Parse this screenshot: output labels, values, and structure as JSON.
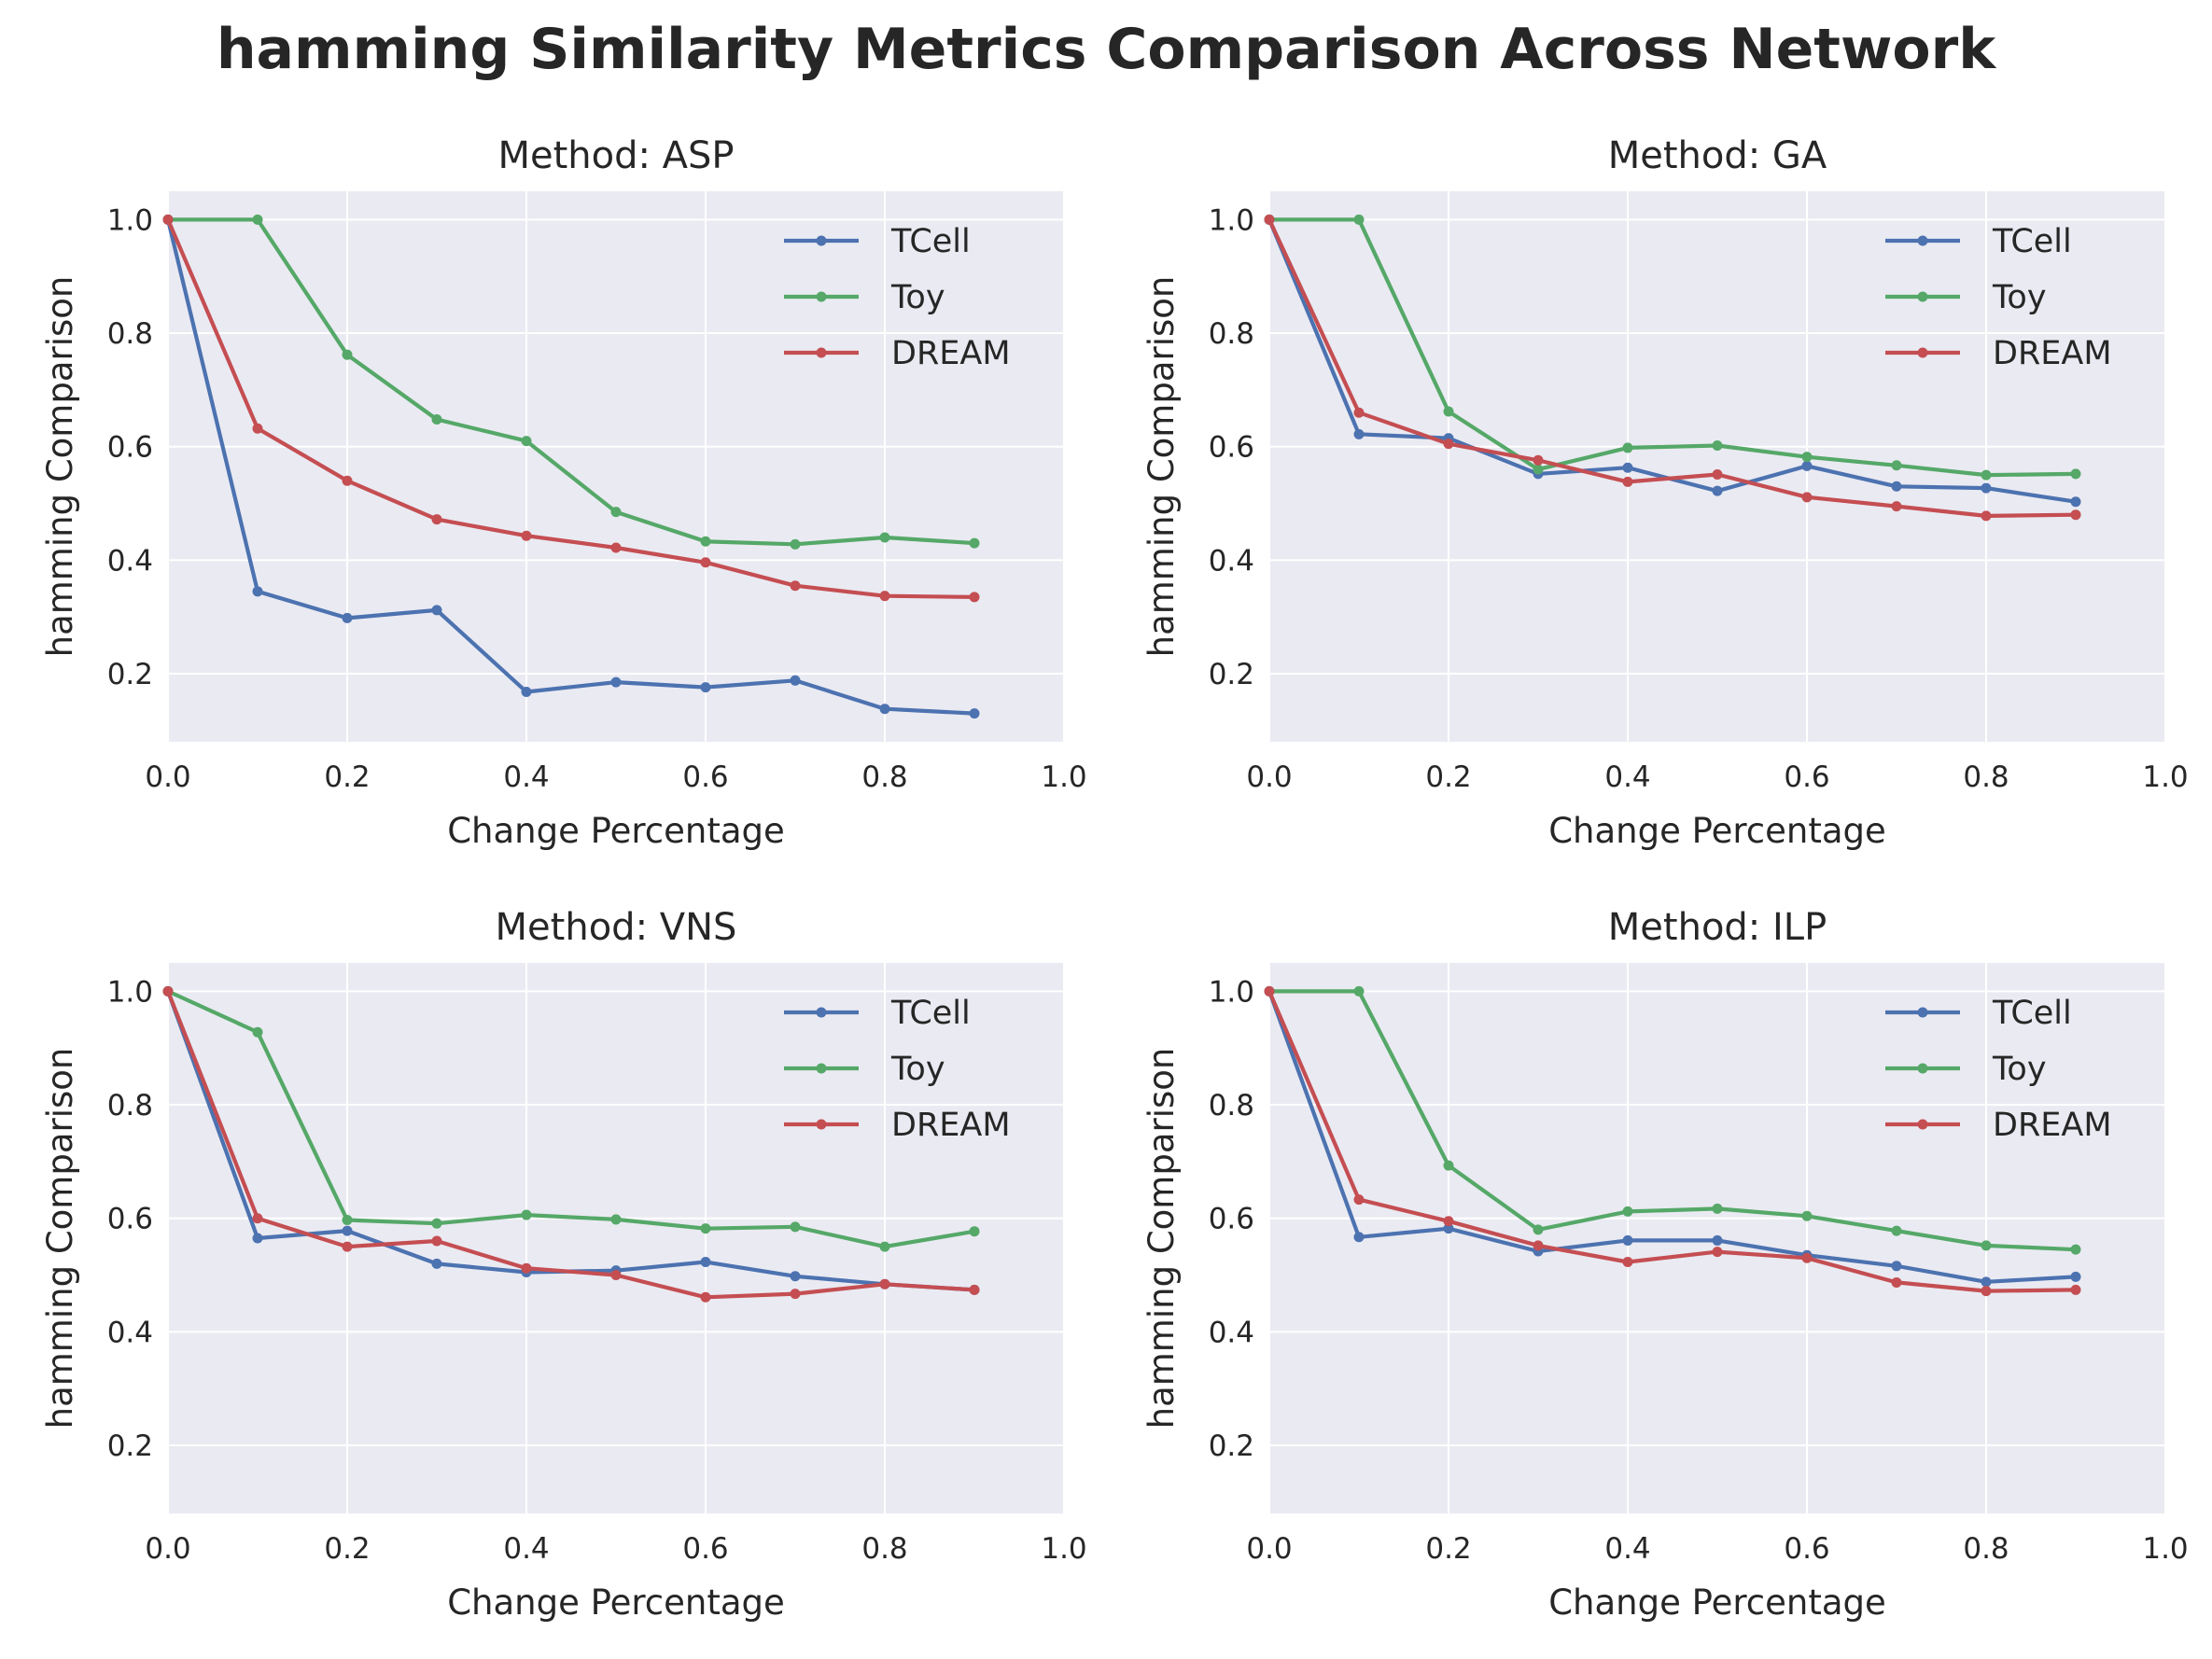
{
  "figure": {
    "title": "hamming Similarity Metrics Comparison Across Network"
  },
  "colors": {
    "TCell": "#4c72b0",
    "Toy": "#55a868",
    "DREAM": "#c44e52",
    "plot_bg": "#eaeaf2",
    "grid": "#ffffff"
  },
  "chart_data": [
    {
      "type": "line",
      "title": "Method: ASP",
      "xlabel": "Change Percentage",
      "ylabel": "hamming Comparison",
      "xlim": [
        0.0,
        1.0
      ],
      "ylim": [
        0.08,
        1.05
      ],
      "xticks": [
        "0.0",
        "0.2",
        "0.4",
        "0.6",
        "0.8",
        "1.0"
      ],
      "yticks": [
        "0.2",
        "0.4",
        "0.6",
        "0.8",
        "1.0"
      ],
      "grid": true,
      "legend": "top-right",
      "x": [
        0.0,
        0.1,
        0.2,
        0.3,
        0.4,
        0.5,
        0.6,
        0.7,
        0.8,
        0.9
      ],
      "series": [
        {
          "name": "TCell",
          "values": [
            1.0,
            0.345,
            0.298,
            0.312,
            0.168,
            0.185,
            0.176,
            0.188,
            0.138,
            0.13
          ]
        },
        {
          "name": "Toy",
          "values": [
            1.0,
            1.0,
            0.762,
            0.648,
            0.61,
            0.485,
            0.433,
            0.428,
            0.44,
            0.43
          ]
        },
        {
          "name": "DREAM",
          "values": [
            1.0,
            0.632,
            0.54,
            0.472,
            0.443,
            0.422,
            0.396,
            0.355,
            0.337,
            0.335
          ]
        }
      ]
    },
    {
      "type": "line",
      "title": "Method: GA",
      "xlabel": "Change Percentage",
      "ylabel": "hamming Comparison",
      "xlim": [
        0.0,
        1.0
      ],
      "ylim": [
        0.08,
        1.05
      ],
      "xticks": [
        "0.0",
        "0.2",
        "0.4",
        "0.6",
        "0.8",
        "1.0"
      ],
      "yticks": [
        "0.2",
        "0.4",
        "0.6",
        "0.8",
        "1.0"
      ],
      "grid": true,
      "legend": "top-right",
      "x": [
        0.0,
        0.1,
        0.2,
        0.3,
        0.4,
        0.5,
        0.6,
        0.7,
        0.8,
        0.9
      ],
      "series": [
        {
          "name": "TCell",
          "values": [
            1.0,
            0.622,
            0.615,
            0.552,
            0.563,
            0.522,
            0.566,
            0.53,
            0.527,
            0.503
          ]
        },
        {
          "name": "Toy",
          "values": [
            1.0,
            1.0,
            0.662,
            0.56,
            0.598,
            0.602,
            0.582,
            0.567,
            0.55,
            0.552
          ]
        },
        {
          "name": "DREAM",
          "values": [
            1.0,
            0.66,
            0.605,
            0.576,
            0.538,
            0.551,
            0.511,
            0.495,
            0.478,
            0.48
          ]
        }
      ]
    },
    {
      "type": "line",
      "title": "Method: VNS",
      "xlabel": "Change Percentage",
      "ylabel": "hamming Comparison",
      "xlim": [
        0.0,
        1.0
      ],
      "ylim": [
        0.08,
        1.05
      ],
      "xticks": [
        "0.0",
        "0.2",
        "0.4",
        "0.6",
        "0.8",
        "1.0"
      ],
      "yticks": [
        "0.2",
        "0.4",
        "0.6",
        "0.8",
        "1.0"
      ],
      "grid": true,
      "legend": "top-right",
      "x": [
        0.0,
        0.1,
        0.2,
        0.3,
        0.4,
        0.5,
        0.6,
        0.7,
        0.8,
        0.9
      ],
      "series": [
        {
          "name": "TCell",
          "values": [
            1.0,
            0.565,
            0.578,
            0.52,
            0.505,
            0.508,
            0.523,
            0.498,
            0.484,
            0.474
          ]
        },
        {
          "name": "Toy",
          "values": [
            1.0,
            0.928,
            0.597,
            0.591,
            0.606,
            0.598,
            0.582,
            0.585,
            0.55,
            0.577
          ]
        },
        {
          "name": "DREAM",
          "values": [
            1.0,
            0.6,
            0.55,
            0.56,
            0.512,
            0.5,
            0.461,
            0.467,
            0.484,
            0.474
          ]
        }
      ]
    },
    {
      "type": "line",
      "title": "Method: ILP",
      "xlabel": "Change Percentage",
      "ylabel": "hamming Comparison",
      "xlim": [
        0.0,
        1.0
      ],
      "ylim": [
        0.08,
        1.05
      ],
      "xticks": [
        "0.0",
        "0.2",
        "0.4",
        "0.6",
        "0.8",
        "1.0"
      ],
      "yticks": [
        "0.2",
        "0.4",
        "0.6",
        "0.8",
        "1.0"
      ],
      "grid": true,
      "legend": "top-right",
      "x": [
        0.0,
        0.1,
        0.2,
        0.3,
        0.4,
        0.5,
        0.6,
        0.7,
        0.8,
        0.9
      ],
      "series": [
        {
          "name": "TCell",
          "values": [
            1.0,
            0.567,
            0.582,
            0.542,
            0.561,
            0.561,
            0.535,
            0.516,
            0.488,
            0.497
          ]
        },
        {
          "name": "Toy",
          "values": [
            1.0,
            1.0,
            0.693,
            0.58,
            0.612,
            0.617,
            0.604,
            0.578,
            0.552,
            0.545
          ]
        },
        {
          "name": "DREAM",
          "values": [
            1.0,
            0.633,
            0.595,
            0.552,
            0.523,
            0.541,
            0.53,
            0.487,
            0.472,
            0.474
          ]
        }
      ]
    }
  ]
}
